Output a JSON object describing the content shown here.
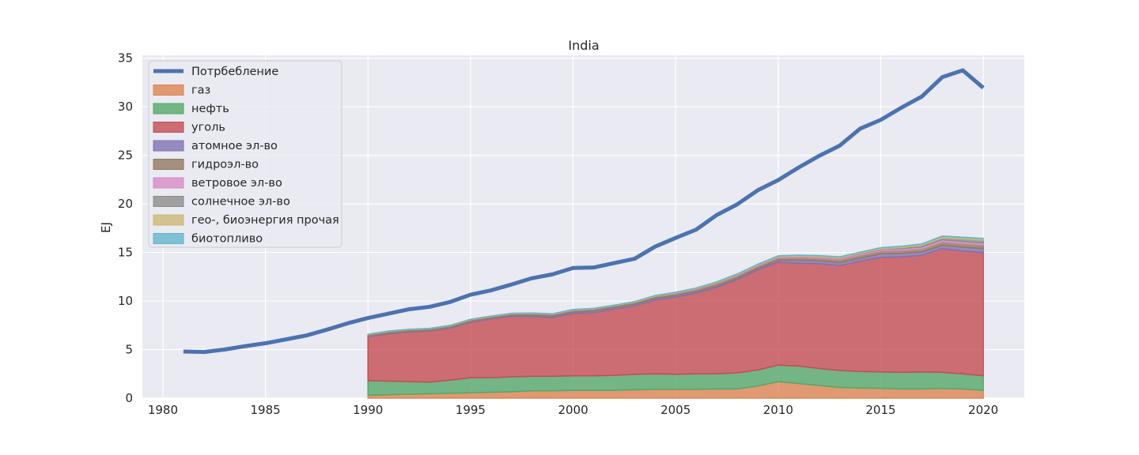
{
  "chart_data": {
    "type": "area",
    "title": "India",
    "xlabel": "",
    "ylabel": "EJ",
    "xlim": [
      1979,
      2022
    ],
    "ylim": [
      0,
      35.3
    ],
    "grid": true,
    "legend_position": "top-left",
    "xticks": [
      1980,
      1985,
      1990,
      1995,
      2000,
      2005,
      2010,
      2015,
      2020
    ],
    "yticks": [
      0,
      5,
      10,
      15,
      20,
      25,
      30,
      35
    ],
    "line": {
      "name": "Потрбебление",
      "color": "#4c72b0",
      "x": [
        1981,
        1982,
        1983,
        1984,
        1985,
        1986,
        1987,
        1988,
        1989,
        1990,
        1991,
        1992,
        1993,
        1994,
        1995,
        1996,
        1997,
        1998,
        1999,
        2000,
        2001,
        2002,
        2003,
        2004,
        2005,
        2006,
        2007,
        2008,
        2009,
        2010,
        2011,
        2012,
        2013,
        2014,
        2015,
        2016,
        2017,
        2018,
        2019,
        2020
      ],
      "values": [
        4.8,
        4.75,
        5.0,
        5.35,
        5.65,
        6.05,
        6.45,
        7.05,
        7.7,
        8.25,
        8.7,
        9.15,
        9.4,
        9.9,
        10.65,
        11.1,
        11.7,
        12.35,
        12.75,
        13.4,
        13.45,
        13.9,
        14.35,
        15.6,
        16.5,
        17.35,
        18.85,
        19.95,
        21.4,
        22.45,
        23.75,
        24.95,
        26.0,
        27.75,
        28.65,
        29.9,
        31.05,
        33.05,
        33.75,
        31.95
      ]
    },
    "stack_x": [
      1990,
      1991,
      1992,
      1993,
      1994,
      1995,
      1996,
      1997,
      1998,
      1999,
      2000,
      2001,
      2002,
      2003,
      2004,
      2005,
      2006,
      2007,
      2008,
      2009,
      2010,
      2011,
      2012,
      2013,
      2014,
      2015,
      2016,
      2017,
      2018,
      2019,
      2020
    ],
    "series": [
      {
        "name": "газ",
        "color": "#dd8452",
        "values": [
          0.3,
          0.35,
          0.4,
          0.45,
          0.5,
          0.55,
          0.6,
          0.65,
          0.75,
          0.75,
          0.8,
          0.8,
          0.8,
          0.85,
          0.9,
          0.9,
          0.9,
          0.95,
          0.95,
          1.25,
          1.7,
          1.5,
          1.3,
          1.1,
          1.05,
          1.0,
          0.95,
          0.95,
          1.0,
          0.95,
          0.8
        ]
      },
      {
        "name": "нефть",
        "color": "#55a868",
        "values": [
          1.5,
          1.4,
          1.3,
          1.2,
          1.35,
          1.55,
          1.5,
          1.55,
          1.5,
          1.5,
          1.5,
          1.5,
          1.55,
          1.6,
          1.6,
          1.55,
          1.6,
          1.55,
          1.65,
          1.65,
          1.7,
          1.8,
          1.75,
          1.75,
          1.7,
          1.7,
          1.7,
          1.75,
          1.65,
          1.55,
          1.5
        ]
      },
      {
        "name": "уголь",
        "color": "#c44e52",
        "values": [
          4.5,
          4.85,
          5.1,
          5.25,
          5.35,
          5.7,
          6.05,
          6.2,
          6.15,
          6.05,
          6.4,
          6.5,
          6.8,
          7.05,
          7.6,
          7.95,
          8.3,
          8.9,
          9.6,
          10.3,
          10.6,
          10.6,
          10.8,
          10.8,
          11.35,
          11.8,
          11.9,
          12.0,
          12.75,
          12.65,
          12.7
        ]
      },
      {
        "name": "атомное эл-во",
        "color": "#8172b3",
        "values": [
          0.06,
          0.06,
          0.07,
          0.06,
          0.05,
          0.07,
          0.08,
          0.1,
          0.12,
          0.13,
          0.15,
          0.18,
          0.18,
          0.17,
          0.17,
          0.16,
          0.16,
          0.15,
          0.14,
          0.15,
          0.2,
          0.3,
          0.3,
          0.3,
          0.32,
          0.35,
          0.35,
          0.35,
          0.35,
          0.4,
          0.4
        ]
      },
      {
        "name": "гидроэл-во",
        "color": "#937860",
        "values": [
          0.2,
          0.22,
          0.2,
          0.2,
          0.22,
          0.2,
          0.18,
          0.19,
          0.2,
          0.2,
          0.22,
          0.2,
          0.18,
          0.2,
          0.22,
          0.25,
          0.27,
          0.3,
          0.3,
          0.27,
          0.27,
          0.31,
          0.28,
          0.34,
          0.32,
          0.32,
          0.33,
          0.33,
          0.35,
          0.38,
          0.38
        ]
      },
      {
        "name": "ветровое эл-во",
        "color": "#da8bc3",
        "values": [
          0,
          0,
          0,
          0,
          0,
          0.01,
          0.01,
          0.01,
          0.01,
          0.02,
          0.02,
          0.02,
          0.02,
          0.02,
          0.03,
          0.04,
          0.05,
          0.06,
          0.07,
          0.08,
          0.09,
          0.1,
          0.12,
          0.12,
          0.13,
          0.14,
          0.17,
          0.19,
          0.2,
          0.2,
          0.19
        ]
      },
      {
        "name": "солнечное эл-во",
        "color": "#8c8c8c",
        "values": [
          0,
          0,
          0,
          0,
          0,
          0,
          0,
          0,
          0,
          0,
          0,
          0,
          0,
          0,
          0,
          0,
          0,
          0,
          0,
          0,
          0,
          0.01,
          0.02,
          0.03,
          0.04,
          0.05,
          0.1,
          0.15,
          0.22,
          0.27,
          0.3
        ]
      },
      {
        "name": "гео-, биоэнергия прочая",
        "color": "#ccb974",
        "values": [
          0.02,
          0.02,
          0.02,
          0.02,
          0.02,
          0.03,
          0.03,
          0.03,
          0.03,
          0.03,
          0.04,
          0.04,
          0.04,
          0.05,
          0.05,
          0.05,
          0.06,
          0.06,
          0.07,
          0.07,
          0.08,
          0.09,
          0.1,
          0.1,
          0.11,
          0.12,
          0.13,
          0.14,
          0.15,
          0.15,
          0.15
        ]
      },
      {
        "name": "биотопливо",
        "color": "#64b5cd",
        "values": [
          0,
          0,
          0,
          0,
          0,
          0,
          0,
          0,
          0,
          0,
          0,
          0,
          0,
          0,
          0,
          0,
          0,
          0,
          0,
          0.01,
          0.01,
          0.01,
          0.01,
          0.01,
          0.01,
          0.01,
          0.01,
          0.01,
          0.02,
          0.02,
          0.02
        ]
      }
    ]
  }
}
